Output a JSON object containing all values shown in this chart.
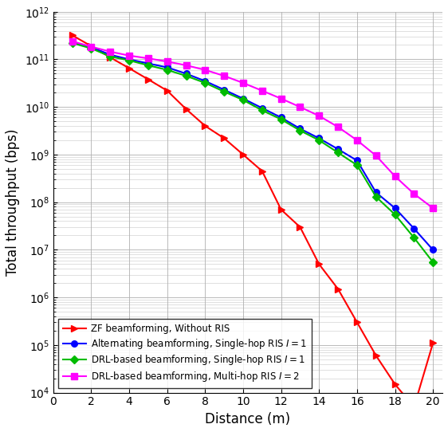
{
  "x": [
    1,
    2,
    3,
    4,
    5,
    6,
    7,
    8,
    9,
    10,
    11,
    12,
    13,
    14,
    15,
    16,
    17,
    18,
    19,
    20
  ],
  "zf_no_ris": [
    320000000000.0,
    190000000000.0,
    110000000000.0,
    65000000000.0,
    38000000000.0,
    22000000000.0,
    9000000000.0,
    4000000000.0,
    2200000000.0,
    1000000000.0,
    450000000.0,
    70000000.0,
    30000000.0,
    5000000.0,
    1500000.0,
    300000.0,
    60000.0,
    15000.0,
    5000.0,
    110000.0
  ],
  "alt_single_hop": [
    230000000000.0,
    180000000000.0,
    125000000000.0,
    100000000000.0,
    82000000000.0,
    68000000000.0,
    50000000000.0,
    35000000000.0,
    23000000000.0,
    15000000000.0,
    9500000000.0,
    6000000000.0,
    3500000000.0,
    2200000000.0,
    1300000000.0,
    750000000.0,
    160000000.0,
    75000000.0,
    28000000.0,
    10000000.0
  ],
  "drl_single_hop": [
    220000000000.0,
    170000000000.0,
    115000000000.0,
    95000000000.0,
    75000000000.0,
    60000000000.0,
    45000000000.0,
    32000000000.0,
    21000000000.0,
    14000000000.0,
    8500000000.0,
    5500000000.0,
    3200000000.0,
    2000000000.0,
    1100000000.0,
    600000000.0,
    130000000.0,
    55000000.0,
    18000000.0,
    5500000.0
  ],
  "drl_multi_hop": [
    240000000000.0,
    185000000000.0,
    145000000000.0,
    120000000000.0,
    105000000000.0,
    90000000000.0,
    75000000000.0,
    60000000000.0,
    45000000000.0,
    32000000000.0,
    22000000000.0,
    15000000000.0,
    10000000000.0,
    6500000000.0,
    3800000000.0,
    2000000000.0,
    950000000.0,
    350000000.0,
    150000000.0,
    75000000.0
  ],
  "colors": {
    "zf_no_ris": "#ff0000",
    "alt_single_hop": "#0000ff",
    "drl_single_hop": "#00bb00",
    "drl_multi_hop": "#ff00ff"
  },
  "labels": {
    "zf_no_ris": "ZF beamforming, Without RIS",
    "alt_single_hop": "Alternating beamforming, Single-hop RIS $I = 1$",
    "drl_single_hop": "DRL-based beamforming, Single-hop RIS $I = 1$",
    "drl_multi_hop": "DRL-based beamforming, Multi-hop RIS $I = 2$"
  },
  "xlabel": "Distance (m)",
  "ylabel": "Total throughput (bps)",
  "ylim": [
    10000.0,
    1000000000000.0
  ],
  "xlim": [
    0.5,
    20.5
  ],
  "xticks": [
    0,
    2,
    4,
    6,
    8,
    10,
    12,
    14,
    16,
    18,
    20
  ],
  "background_color": "#ffffff",
  "grid_color": "#b0b0b0"
}
